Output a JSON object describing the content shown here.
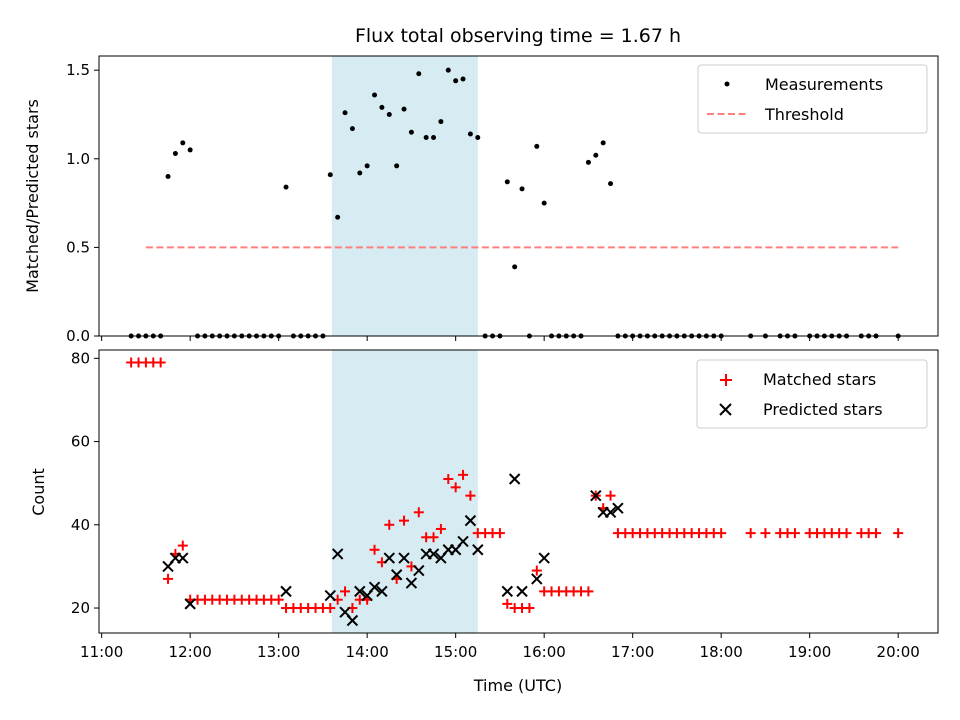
{
  "title": "Flux total observing time = 1.67 h",
  "colors": {
    "highlight": "#add8e6",
    "matched": "#ff0000",
    "predicted": "#000000",
    "threshold": "#ff7f7f",
    "measure": "#000000"
  },
  "chart_data": [
    {
      "type": "scatter",
      "ylabel": "Matched/Predicted stars",
      "xlim_hours": [
        10.97,
        20.45
      ],
      "ylim": [
        0,
        1.58
      ],
      "yticks": [
        0.0,
        0.5,
        1.0,
        1.5
      ],
      "ytick_labels": [
        "0.0",
        "0.5",
        "1.0",
        "1.5"
      ],
      "highlight_span": [
        "13:36",
        "15:15"
      ],
      "legend": {
        "position": "top-right",
        "entries": [
          "Measurements",
          "Threshold"
        ]
      },
      "threshold": {
        "name": "Threshold",
        "value": 0.5,
        "x_range": [
          "11:30",
          "20:00"
        ]
      },
      "series": [
        {
          "name": "Measurements",
          "x": [
            "11:20",
            "11:25",
            "11:30",
            "11:35",
            "11:40",
            "11:45",
            "11:50",
            "11:55",
            "12:00",
            "12:05",
            "12:10",
            "12:15",
            "12:20",
            "12:25",
            "12:30",
            "12:35",
            "12:40",
            "12:45",
            "12:50",
            "12:55",
            "13:00",
            "13:05",
            "13:10",
            "13:15",
            "13:20",
            "13:25",
            "13:30",
            "13:35",
            "13:40",
            "13:45",
            "13:50",
            "13:55",
            "14:00",
            "14:05",
            "14:10",
            "14:15",
            "14:20",
            "14:25",
            "14:30",
            "14:35",
            "14:40",
            "14:45",
            "14:50",
            "14:55",
            "15:00",
            "15:05",
            "15:10",
            "15:15",
            "15:20",
            "15:25",
            "15:30",
            "15:35",
            "15:40",
            "15:45",
            "15:50",
            "15:55",
            "16:00",
            "16:05",
            "16:10",
            "16:15",
            "16:20",
            "16:25",
            "16:30",
            "16:35",
            "16:40",
            "16:45",
            "16:50",
            "16:55",
            "17:00",
            "17:05",
            "17:10",
            "17:15",
            "17:20",
            "17:25",
            "17:30",
            "17:35",
            "17:40",
            "17:45",
            "17:50",
            "17:55",
            "18:00",
            "18:20",
            "18:30",
            "18:40",
            "18:45",
            "18:50",
            "19:00",
            "19:05",
            "19:10",
            "19:15",
            "19:20",
            "19:25",
            "19:35",
            "19:40",
            "19:45",
            "20:00"
          ],
          "y": [
            0,
            0,
            0,
            0,
            0,
            0.9,
            1.03,
            1.09,
            1.05,
            0,
            0,
            0,
            0,
            0,
            0,
            0,
            0,
            0,
            0,
            0,
            0,
            0.84,
            0,
            0,
            0,
            0,
            0,
            0.91,
            0.67,
            1.26,
            1.17,
            0.92,
            0.96,
            1.36,
            1.29,
            1.25,
            0.96,
            1.28,
            1.15,
            1.48,
            1.12,
            1.12,
            1.21,
            1.5,
            1.44,
            1.45,
            1.14,
            1.12,
            0,
            0,
            0,
            0.87,
            0.39,
            0.83,
            0,
            1.07,
            0.75,
            0,
            0,
            0,
            0,
            0,
            0.98,
            1.02,
            1.09,
            0.86,
            0,
            0,
            0,
            0,
            0,
            0,
            0,
            0,
            0,
            0,
            0,
            0,
            0,
            0,
            0,
            0,
            0,
            0,
            0,
            0,
            0,
            0,
            0,
            0,
            0,
            0,
            0,
            0,
            0,
            0
          ]
        }
      ]
    },
    {
      "type": "scatter",
      "xlabel": "Time (UTC)",
      "ylabel": "Count",
      "xlim_hours": [
        10.97,
        20.45
      ],
      "ylim": [
        14,
        82
      ],
      "yticks": [
        20,
        40,
        60,
        80
      ],
      "ytick_labels": [
        "20",
        "40",
        "60",
        "80"
      ],
      "xtick_labels": [
        "11:00",
        "12:00",
        "13:00",
        "14:00",
        "15:00",
        "16:00",
        "17:00",
        "18:00",
        "19:00",
        "20:00"
      ],
      "highlight_span": [
        "13:36",
        "15:15"
      ],
      "legend": {
        "position": "top-right",
        "entries": [
          "Matched stars",
          "Predicted stars"
        ]
      },
      "series": [
        {
          "name": "Matched stars",
          "x": [
            "11:20",
            "11:25",
            "11:30",
            "11:35",
            "11:40",
            "11:45",
            "11:50",
            "11:55",
            "12:00",
            "12:05",
            "12:10",
            "12:15",
            "12:20",
            "12:25",
            "12:30",
            "12:35",
            "12:40",
            "12:45",
            "12:50",
            "12:55",
            "13:00",
            "13:05",
            "13:10",
            "13:15",
            "13:20",
            "13:25",
            "13:30",
            "13:35",
            "13:40",
            "13:45",
            "13:50",
            "13:55",
            "14:00",
            "14:05",
            "14:10",
            "14:15",
            "14:20",
            "14:25",
            "14:30",
            "14:35",
            "14:40",
            "14:45",
            "14:50",
            "14:55",
            "15:00",
            "15:05",
            "15:10",
            "15:15",
            "15:20",
            "15:25",
            "15:30",
            "15:35",
            "15:40",
            "15:45",
            "15:50",
            "15:55",
            "16:00",
            "16:05",
            "16:10",
            "16:15",
            "16:20",
            "16:25",
            "16:30",
            "16:35",
            "16:40",
            "16:45",
            "16:50",
            "16:55",
            "17:00",
            "17:05",
            "17:10",
            "17:15",
            "17:20",
            "17:25",
            "17:30",
            "17:35",
            "17:40",
            "17:45",
            "17:50",
            "17:55",
            "18:00",
            "18:20",
            "18:30",
            "18:40",
            "18:45",
            "18:50",
            "19:00",
            "19:05",
            "19:10",
            "19:15",
            "19:20",
            "19:25",
            "19:35",
            "19:40",
            "19:45",
            "20:00"
          ],
          "y": [
            79,
            79,
            79,
            79,
            79,
            27,
            33,
            35,
            22,
            22,
            22,
            22,
            22,
            22,
            22,
            22,
            22,
            22,
            22,
            22,
            22,
            20,
            20,
            20,
            20,
            20,
            20,
            20,
            22,
            24,
            20,
            22,
            22,
            34,
            31,
            40,
            27,
            41,
            30,
            43,
            37,
            37,
            39,
            51,
            49,
            52,
            47,
            38,
            38,
            38,
            38,
            21,
            20,
            20,
            20,
            29,
            24,
            24,
            24,
            24,
            24,
            24,
            24,
            47,
            44,
            47,
            38,
            38,
            38,
            38,
            38,
            38,
            38,
            38,
            38,
            38,
            38,
            38,
            38,
            38,
            38,
            38,
            38,
            38,
            38,
            38,
            38,
            38,
            38,
            38,
            38,
            38,
            38,
            38,
            38,
            38
          ]
        },
        {
          "name": "Predicted stars",
          "x": [
            "11:45",
            "11:50",
            "11:55",
            "12:00",
            "13:05",
            "13:35",
            "13:40",
            "13:45",
            "13:50",
            "13:55",
            "14:00",
            "14:05",
            "14:10",
            "14:15",
            "14:20",
            "14:25",
            "14:30",
            "14:35",
            "14:40",
            "14:45",
            "14:50",
            "14:55",
            "15:00",
            "15:05",
            "15:10",
            "15:15",
            "15:35",
            "15:40",
            "15:45",
            "15:55",
            "16:00",
            "16:35",
            "16:40",
            "16:45",
            "16:50"
          ],
          "y": [
            30,
            32,
            32,
            21,
            24,
            23,
            33,
            19,
            17,
            24,
            23,
            25,
            24,
            32,
            28,
            32,
            26,
            29,
            33,
            33,
            32,
            34,
            34,
            36,
            41,
            34,
            24,
            51,
            24,
            27,
            32,
            47,
            43,
            43,
            44
          ]
        }
      ]
    }
  ]
}
